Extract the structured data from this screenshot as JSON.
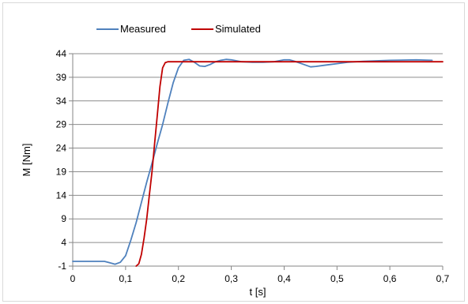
{
  "chart_data": {
    "type": "line",
    "title": "",
    "xlabel": "t [s]",
    "ylabel": "M [Nm]",
    "xlim": [
      0,
      0.7
    ],
    "ylim": [
      -1,
      44
    ],
    "xticks": [
      0,
      0.1,
      0.2,
      0.3,
      0.4,
      0.5,
      0.6,
      0.7
    ],
    "xtick_labels": [
      "0",
      "0,1",
      "0,2",
      "0,3",
      "0,4",
      "0,5",
      "0,6",
      "0,7"
    ],
    "yticks": [
      -1,
      4,
      9,
      14,
      19,
      24,
      29,
      34,
      39,
      44
    ],
    "ytick_labels": [
      "-1",
      "4",
      "9",
      "14",
      "19",
      "24",
      "29",
      "34",
      "39",
      "44"
    ],
    "grid": "horizontal",
    "legend_position": "top",
    "series": [
      {
        "name": "Measured",
        "color": "#4f81bd",
        "x": [
          0,
          0.02,
          0.04,
          0.06,
          0.07,
          0.08,
          0.09,
          0.1,
          0.11,
          0.12,
          0.13,
          0.14,
          0.15,
          0.16,
          0.17,
          0.18,
          0.19,
          0.2,
          0.21,
          0.22,
          0.23,
          0.24,
          0.25,
          0.26,
          0.27,
          0.28,
          0.29,
          0.3,
          0.32,
          0.34,
          0.36,
          0.38,
          0.4,
          0.41,
          0.42,
          0.44,
          0.45,
          0.46,
          0.48,
          0.5,
          0.52,
          0.55,
          0.6,
          0.65,
          0.68
        ],
        "y": [
          0,
          0,
          0,
          0,
          -0.3,
          -0.6,
          -0.2,
          1.2,
          4.5,
          8.2,
          12.5,
          16.8,
          20.8,
          25,
          29,
          33.5,
          37.8,
          41,
          42.6,
          42.8,
          42.2,
          41.4,
          41.3,
          41.7,
          42.3,
          42.6,
          42.8,
          42.7,
          42.3,
          42.2,
          42.2,
          42.3,
          42.7,
          42.7,
          42.4,
          41.6,
          41.2,
          41.3,
          41.6,
          41.9,
          42.2,
          42.4,
          42.6,
          42.7,
          42.6
        ]
      },
      {
        "name": "Simulated",
        "color": "#c00000",
        "x": [
          0.12,
          0.125,
          0.13,
          0.135,
          0.14,
          0.145,
          0.15,
          0.155,
          0.16,
          0.165,
          0.17,
          0.175,
          0.18,
          0.2,
          0.3,
          0.4,
          0.5,
          0.6,
          0.7
        ],
        "y": [
          -1,
          -0.5,
          1.5,
          5,
          9,
          14,
          19,
          25,
          31,
          37,
          41,
          42.1,
          42.3,
          42.3,
          42.3,
          42.3,
          42.3,
          42.3,
          42.3
        ]
      }
    ]
  }
}
